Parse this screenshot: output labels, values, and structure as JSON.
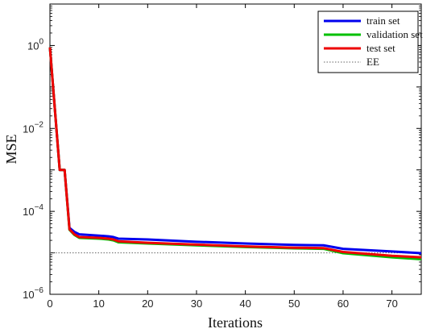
{
  "chart_data": {
    "type": "line",
    "title": "",
    "xlabel": "Iterations",
    "ylabel": "MSE",
    "xlim": [
      0,
      76
    ],
    "ylim": [
      1e-06,
      10
    ],
    "yscale": "log",
    "grid": false,
    "legend_position": "top-right",
    "x_ticks": [
      0,
      10,
      20,
      30,
      40,
      50,
      60,
      70
    ],
    "y_ticks": [
      {
        "value": 1e-06,
        "base": "10",
        "exp": "−6"
      },
      {
        "value": 0.0001,
        "base": "10",
        "exp": "−4"
      },
      {
        "value": 0.01,
        "base": "10",
        "exp": "−2"
      },
      {
        "value": 1,
        "base": "10",
        "exp": "0"
      }
    ],
    "series": [
      {
        "name": "train set",
        "color": "#0000ee",
        "style": "solid",
        "x": [
          0,
          2,
          3,
          4,
          5,
          6,
          10,
          12,
          13,
          14,
          20,
          30,
          40,
          50,
          56,
          60,
          70,
          76
        ],
        "y": [
          0.9,
          0.001,
          0.001,
          4e-05,
          3.2e-05,
          2.8e-05,
          2.6e-05,
          2.5e-05,
          2.4e-05,
          2.2e-05,
          2.1e-05,
          1.85e-05,
          1.68e-05,
          1.55e-05,
          1.52e-05,
          1.25e-05,
          1.08e-05,
          9.8e-06
        ]
      },
      {
        "name": "validation set",
        "color": "#00c000",
        "style": "solid",
        "x": [
          0,
          2,
          3,
          4,
          5,
          6,
          10,
          12,
          13,
          14,
          20,
          30,
          40,
          50,
          56,
          60,
          70,
          76
        ],
        "y": [
          0.9,
          0.001,
          0.001,
          3.6e-05,
          2.7e-05,
          2.3e-05,
          2.2e-05,
          2.1e-05,
          2e-05,
          1.8e-05,
          1.68e-05,
          1.52e-05,
          1.38e-05,
          1.28e-05,
          1.25e-05,
          9.8e-06,
          7.8e-06,
          7e-06
        ]
      },
      {
        "name": "test set",
        "color": "#ee0000",
        "style": "solid",
        "x": [
          0,
          2,
          3,
          4,
          5,
          6,
          10,
          12,
          13,
          14,
          20,
          30,
          40,
          50,
          56,
          60,
          70,
          76
        ],
        "y": [
          0.9,
          0.001,
          0.001,
          3.7e-05,
          2.8e-05,
          2.4e-05,
          2.3e-05,
          2.2e-05,
          2.1e-05,
          1.9e-05,
          1.75e-05,
          1.58e-05,
          1.43e-05,
          1.33e-05,
          1.3e-05,
          1.05e-05,
          8.5e-06,
          7.8e-06
        ]
      },
      {
        "name": "EE",
        "color": "#666666",
        "style": "dotted",
        "x": [
          0,
          76
        ],
        "y": [
          1e-05,
          1e-05
        ]
      }
    ]
  }
}
